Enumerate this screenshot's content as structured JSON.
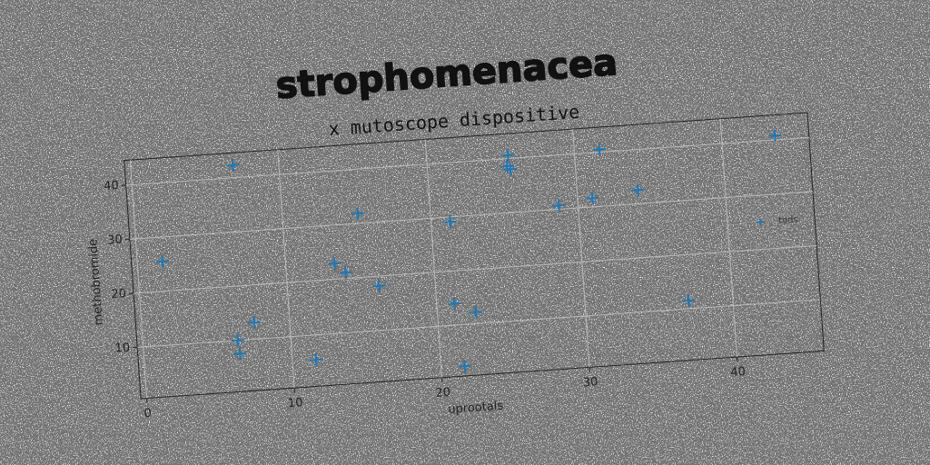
{
  "chart_data": {
    "type": "scatter",
    "title": "strophomenacea",
    "subtitle": "x mutoscope dispositive",
    "xlabel": "uprootals",
    "ylabel": "methobromide",
    "series": [
      {
        "name": "tods",
        "color": "#1f77b4",
        "x": [
          1.7,
          6.9,
          6.4,
          6.5,
          7.6,
          11.6,
          13.3,
          14.0,
          15.1,
          16.2,
          21.3,
          21.2,
          22.6,
          21.6,
          25.5,
          25.4,
          25.6,
          28.7,
          31.0,
          31.7,
          34.1,
          37.0,
          43.6
        ],
        "values": [
          25.5,
          42.3,
          10.0,
          7.5,
          13.1,
          5.4,
          22.9,
          21.1,
          31.8,
          18.2,
          29.1,
          14.0,
          12.1,
          2.3,
          40.6,
          38.6,
          38.0,
          30.7,
          31.6,
          40.5,
          32.5,
          11.5,
          40.8
        ]
      }
    ],
    "xlim": [
      -0.4,
      45.9
    ],
    "ylim": [
      0.5,
      44.6
    ],
    "xticks": [
      0,
      10,
      20,
      30,
      40
    ],
    "yticks": [
      10,
      20,
      30,
      40
    ],
    "grid": true,
    "legend": "right"
  }
}
